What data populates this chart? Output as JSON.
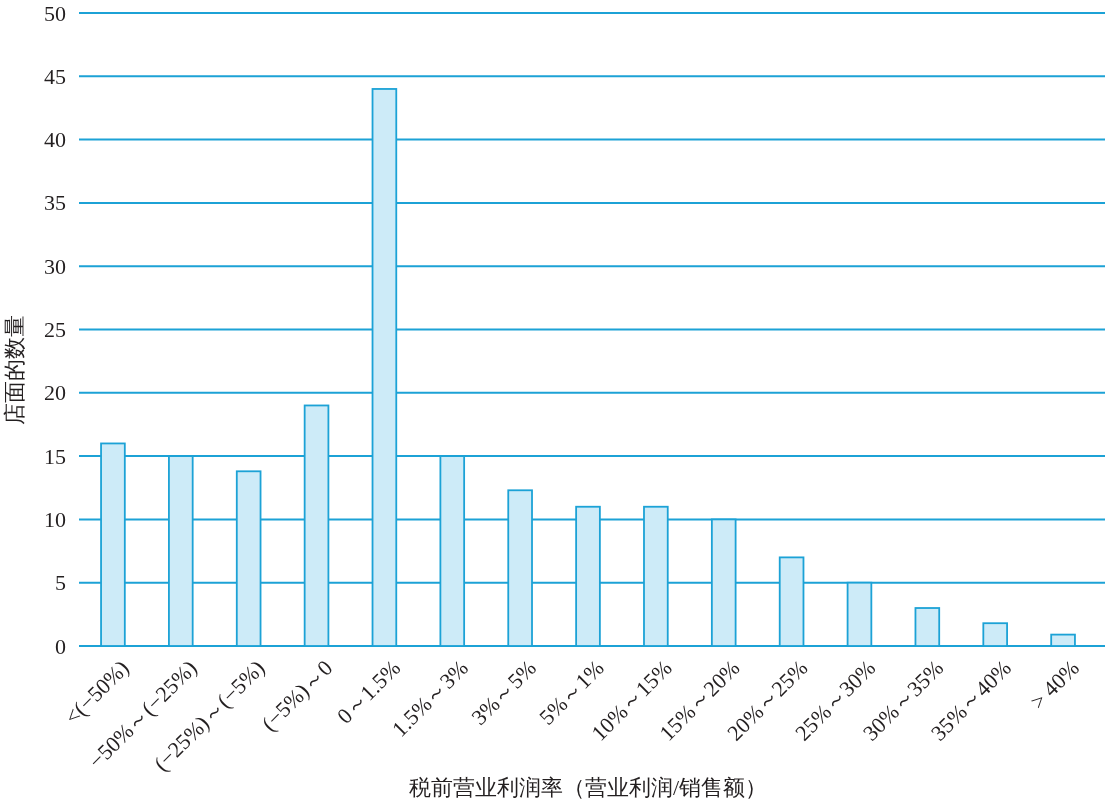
{
  "chart_data": {
    "type": "bar",
    "xlabel": "税前营业利润率（营业利润/销售额）",
    "ylabel": "店面的数量",
    "categories": [
      "<(−50%)",
      "−50%～(−25%)",
      "(−25%)～(−5%)",
      "(−5%)～0",
      "0～1.5%",
      "1.5%～3%",
      "3%～5%",
      "5%～1%",
      "10%～15%",
      "15%～20%",
      "20%～25%",
      "25%～30%",
      "30%～35%",
      "35%～40%",
      "> 40%"
    ],
    "values": [
      16,
      15,
      13.8,
      19,
      44,
      15,
      12.3,
      11,
      11,
      10,
      7,
      5,
      3,
      1.8,
      0.9
    ],
    "color": "#cdebf8",
    "ylim": [
      0,
      50
    ],
    "yticks": [
      0,
      5,
      10,
      15,
      20,
      25,
      30,
      35,
      40,
      45,
      50
    ],
    "grid": "y"
  }
}
